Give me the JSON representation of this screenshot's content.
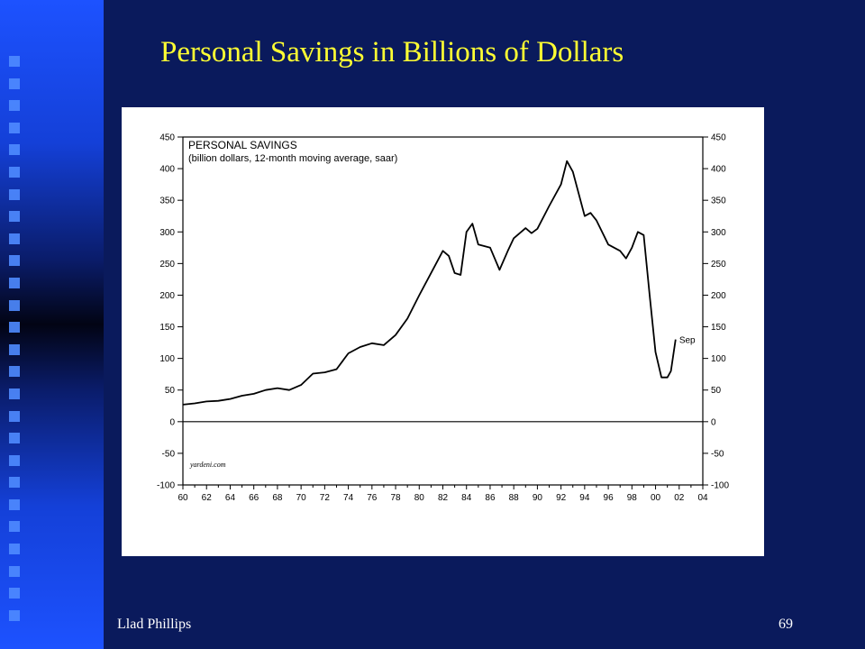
{
  "slide": {
    "title": "Personal Savings in Billions of Dollars",
    "footer_author": "Llad Phillips",
    "page_number": "69"
  },
  "colors": {
    "background": "#0a1a5c",
    "title": "#ffff33",
    "sidebar_square": "#4f8bff"
  },
  "chart_data": {
    "type": "line",
    "title": "PERSONAL SAVINGS",
    "subtitle": "(billion dollars, 12-month moving average, saar)",
    "source": "yardeni.com",
    "annotation": "Sep",
    "xlabel": "",
    "ylabel": "",
    "xlim": [
      1960,
      2004
    ],
    "ylim": [
      -100,
      450
    ],
    "x_ticks": [
      "60",
      "62",
      "64",
      "66",
      "68",
      "70",
      "72",
      "74",
      "76",
      "78",
      "80",
      "82",
      "84",
      "86",
      "88",
      "90",
      "92",
      "94",
      "96",
      "98",
      "00",
      "02",
      "04"
    ],
    "y_ticks": [
      -100,
      -50,
      0,
      50,
      100,
      150,
      200,
      250,
      300,
      350,
      400,
      450
    ],
    "y_tick_labels_left": [
      "-100",
      "-50",
      "0",
      "50",
      "100",
      "150",
      "200",
      "250",
      "300",
      "350",
      "400",
      "450"
    ],
    "y_tick_labels_right": [
      "-100",
      "-50",
      "0",
      "50",
      "100",
      "150",
      "200",
      "250",
      "300",
      "350",
      "400",
      "450"
    ],
    "zero_line": true,
    "series": [
      {
        "x": [
          1960,
          1961,
          1962,
          1963,
          1964,
          1965,
          1966,
          1967,
          1968,
          1969,
          1970,
          1971,
          1972,
          1973,
          1974,
          1975,
          1976,
          1977,
          1978,
          1979,
          1980,
          1981,
          1982,
          1982.5,
          1983,
          1983.5,
          1984,
          1984.5,
          1985,
          1986,
          1986.8,
          1987.5,
          1988,
          1989,
          1989.5,
          1990,
          1991,
          1992,
          1992.5,
          1993,
          1994,
          1994.5,
          1995,
          1996,
          1997,
          1997.5,
          1998,
          1998.5,
          1999,
          1999.5,
          2000,
          2000.5,
          2001,
          2001.3,
          2001.5,
          2001.7
        ],
        "y": [
          27,
          29,
          32,
          33,
          36,
          41,
          44,
          50,
          53,
          50,
          58,
          76,
          78,
          83,
          108,
          118,
          124,
          121,
          137,
          163,
          200,
          235,
          270,
          262,
          235,
          232,
          300,
          313,
          280,
          275,
          240,
          270,
          290,
          306,
          298,
          305,
          341,
          375,
          412,
          395,
          325,
          330,
          318,
          280,
          270,
          258,
          275,
          300,
          295,
          200,
          110,
          70,
          70,
          80,
          105,
          130
        ]
      }
    ]
  }
}
